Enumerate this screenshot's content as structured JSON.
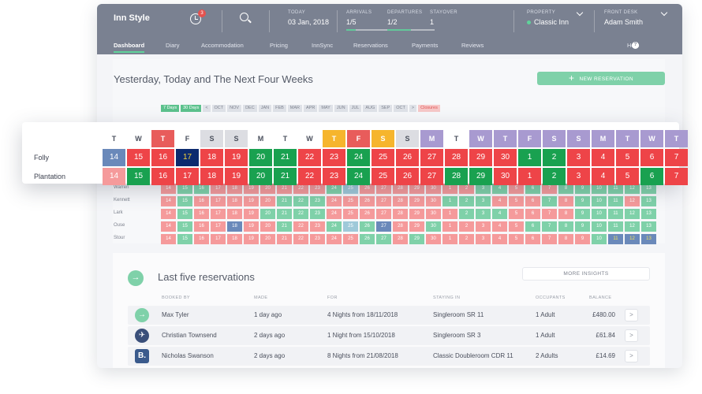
{
  "colors": {
    "green": "#19a150",
    "red": "#ee4448",
    "blue": "#0c2a6e",
    "steel": "#6a89ba",
    "pale_red": "#f59a9b",
    "pale_green": "#7fd1a9",
    "weekend_grey": "#dcdde2",
    "today_red": "#e85c5b",
    "orange": "#f6b52d",
    "purple": "#a89ad0"
  },
  "header": {
    "brand": "Inn Style",
    "notification_count": "3",
    "today": {
      "label": "TODAY",
      "value": "03 Jan, 2018"
    },
    "arrivals": {
      "label": "ARRIVALS",
      "value": "1/5"
    },
    "departures": {
      "label": "DEPARTURES",
      "value": "1/2"
    },
    "stayover": {
      "label": "STAYOVER",
      "value": "1"
    },
    "property": {
      "label": "PROPERTY",
      "value": "Classic Inn"
    },
    "front_desk": {
      "label": "FRONT DESK",
      "value": "Adam Smith"
    }
  },
  "nav": {
    "items": [
      "Dashboard",
      "Diary",
      "Accommodation",
      "Pricing",
      "InnSync",
      "Reservations",
      "Payments",
      "Reviews"
    ],
    "help": "Help",
    "help_icon": "?"
  },
  "overview": {
    "title": "Yesterday, Today and The Next Four Weeks",
    "new_reservation_icon": "+",
    "new_reservation": "NEW RESERVATION",
    "range_buttons": [
      "7 Days",
      "30 Days"
    ],
    "prev": "<",
    "next": ">",
    "months": [
      "OCT",
      "NOV",
      "DEC",
      "JAN",
      "FEB",
      "MAR",
      "APR",
      "MAY",
      "JUN",
      "JUL",
      "AUG",
      "SEP",
      "OCT"
    ],
    "closures": "Closures"
  },
  "mini_calendar": {
    "rooms": [
      "Warren",
      "Kennett",
      "Lark",
      "Ouse",
      "Stour"
    ],
    "days": [
      "14",
      "15",
      "16",
      "17",
      "18",
      "19",
      "20",
      "21",
      "22",
      "23",
      "24",
      "25",
      "26",
      "27",
      "28",
      "29",
      "30",
      "1",
      "2",
      "3",
      "4",
      "5",
      "6",
      "7",
      "8",
      "9",
      "10",
      "11",
      "12",
      "13"
    ],
    "status_rows": [
      "pggpppppppgspppppppggpgpgggggg",
      "pgpppppgggpppppppgggpppgpgggpg",
      "pgppppggggppppppppgggppppggggg",
      "pgppbppgppgsgbppgpppppgggggggg",
      "pgppppppppppggpgppppppppppgooo"
    ]
  },
  "float_calendar": {
    "weekdays": [
      "T",
      "W",
      "T",
      "F",
      "S",
      "S",
      "M",
      "T",
      "W",
      "T",
      "F",
      "S",
      "S",
      "M",
      "T",
      "W",
      "T",
      "F",
      "S",
      "S",
      "M",
      "T",
      "W",
      "T"
    ],
    "weekday_styles": [
      "n",
      "n",
      "r",
      "n",
      "w",
      "w",
      "n",
      "n",
      "n",
      "o",
      "r",
      "o",
      "w",
      "p",
      "n",
      "p",
      "p",
      "p",
      "p",
      "p",
      "p",
      "p",
      "p",
      "p"
    ],
    "rooms": [
      {
        "name": "Folly",
        "days": [
          "14",
          "15",
          "16",
          "17",
          "18",
          "19",
          "20",
          "21",
          "22",
          "23",
          "24",
          "25",
          "26",
          "27",
          "28",
          "29",
          "30",
          "1",
          "2",
          "3",
          "4",
          "5",
          "6",
          "7"
        ],
        "status": [
          "s",
          "r",
          "r",
          "b",
          "r",
          "r",
          "g",
          "g",
          "r",
          "r",
          "g",
          "r",
          "r",
          "r",
          "r",
          "r",
          "r",
          "g",
          "g",
          "r",
          "r",
          "r",
          "r",
          "r"
        ]
      },
      {
        "name": "Plantation",
        "days": [
          "14",
          "15",
          "16",
          "17",
          "18",
          "19",
          "20",
          "21",
          "22",
          "23",
          "24",
          "25",
          "26",
          "27",
          "28",
          "29",
          "30",
          "1",
          "2",
          "3",
          "4",
          "5",
          "6",
          "7"
        ],
        "status": [
          "q",
          "g",
          "r",
          "r",
          "r",
          "r",
          "g",
          "g",
          "r",
          "r",
          "g",
          "r",
          "r",
          "r",
          "g",
          "g",
          "r",
          "r",
          "g",
          "r",
          "r",
          "r",
          "g",
          "r"
        ]
      }
    ]
  },
  "reservations": {
    "title": "Last five reservations",
    "more_insights": "MORE INSIGHTS",
    "headers": [
      "BOOKED BY",
      "MADE",
      "FOR",
      "STAYING IN",
      "OCCUPANTS",
      "BALANCE"
    ],
    "rows": [
      {
        "icon": "arrow-circle-icon",
        "source_glyph": "→",
        "source_color": "#7fd1a9",
        "booked_by": "Max Tyler",
        "made": "1 day ago",
        "for": "4 Nights from 18/11/2018",
        "staying_in": "Singleroom SR 11",
        "occupants": "1 Adult",
        "balance": "£480.00"
      },
      {
        "icon": "plane-icon",
        "source_glyph": "✈",
        "source_color": "#3a4f7a",
        "booked_by": "Christian Townsend",
        "made": "2 days ago",
        "for": "1 Night from 15/10/2018",
        "staying_in": "Singleroom SR 3",
        "occupants": "1 Adult",
        "balance": "£61.84"
      },
      {
        "icon": "booking-b-icon",
        "source_glyph": "B.",
        "source_color": "#3a5a8c",
        "booked_by": "Nicholas Swanson",
        "made": "2 days ago",
        "for": "8 Nights from 21/08/2018",
        "staying_in": "Classic Doubleroom CDR 11",
        "occupants": "2 Adults",
        "balance": "£14.69"
      }
    ],
    "row_action": ">"
  }
}
